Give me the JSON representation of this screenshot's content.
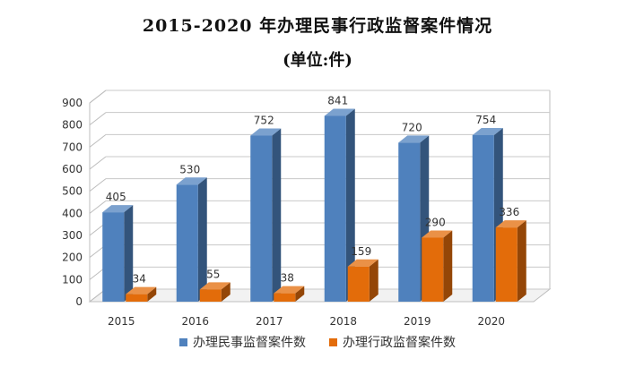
{
  "chart_data": {
    "type": "bar",
    "title": "2015-2020 年办理民事行政监督案件情况",
    "subtitle": "(单位:件)",
    "categories": [
      "2015",
      "2016",
      "2017",
      "2018",
      "2019",
      "2020"
    ],
    "series": [
      {
        "name": "办理民事监督案件数",
        "values": [
          405,
          530,
          752,
          841,
          720,
          754
        ],
        "color": "#4f81bd"
      },
      {
        "name": "办理行政监督案件数",
        "values": [
          34,
          55,
          38,
          159,
          290,
          336
        ],
        "color": "#e36c0a"
      }
    ],
    "y_ticks": [
      "0",
      "100",
      "200",
      "300",
      "400",
      "500",
      "600",
      "700",
      "800",
      "900"
    ],
    "ylim": [
      0,
      900
    ],
    "grid": true,
    "legend_position": "bottom",
    "style": "3d-bar"
  }
}
